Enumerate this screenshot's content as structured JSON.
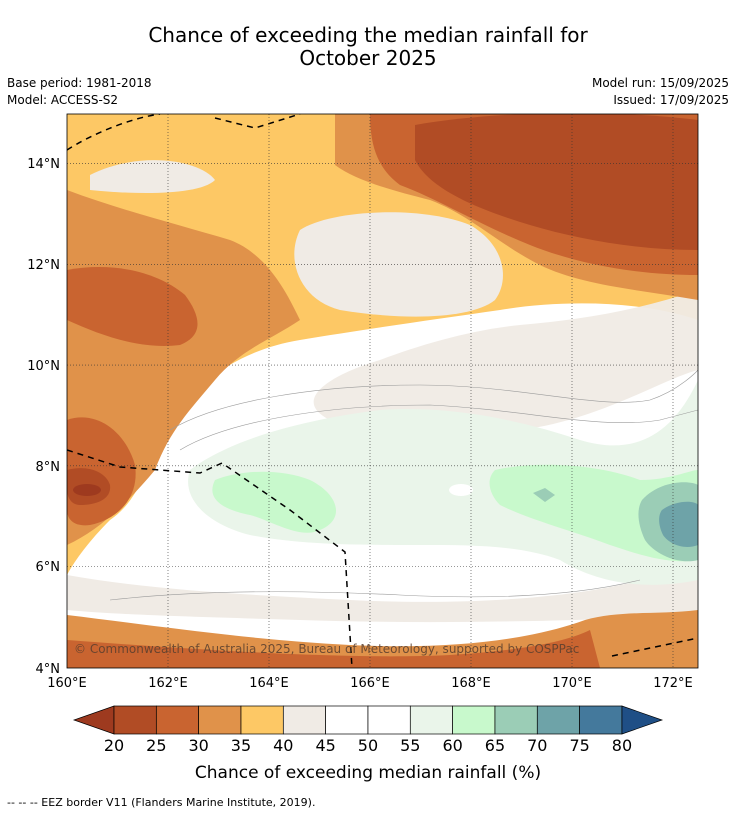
{
  "title": {
    "line1": "Chance of exceeding the median rainfall for",
    "line2": "October 2025"
  },
  "meta": {
    "base_period": "Base period: 1981-2018",
    "model": "Model: ACCESS-S2",
    "model_run": "Model run: 15/09/2025",
    "issued": "Issued: 17/09/2025"
  },
  "map": {
    "lat_labels": [
      "14°N",
      "12°N",
      "10°N",
      "8°N",
      "6°N",
      "4°N"
    ],
    "lon_labels": [
      "160°E",
      "162°E",
      "164°E",
      "166°E",
      "168°E",
      "170°E",
      "172°E"
    ],
    "copyright": "© Commonwealth of Australia 2025, Bureau of Meteorology, supported by COSPPac",
    "region": {
      "lon_min": 160,
      "lon_max": 172.5,
      "lat_min": 4,
      "lat_max": 15
    }
  },
  "colorbar": {
    "label": "Chance of exceeding median rainfall (%)",
    "ticks": [
      "20",
      "25",
      "30",
      "35",
      "40",
      "45",
      "50",
      "55",
      "60",
      "65",
      "70",
      "75",
      "80"
    ],
    "colors": [
      "#9e3a1f",
      "#b14c25",
      "#c96430",
      "#e0924a",
      "#fdc865",
      "#f0ebe5",
      "#ffffff",
      "#ffffff",
      "#eaf5ea",
      "#c8f9cc",
      "#9bcdb6",
      "#6ea3a8",
      "#44799c",
      "#1f4f86"
    ]
  },
  "footnote": "--  --  -- EEZ border V11 (Flanders Marine Institute, 2019)."
}
